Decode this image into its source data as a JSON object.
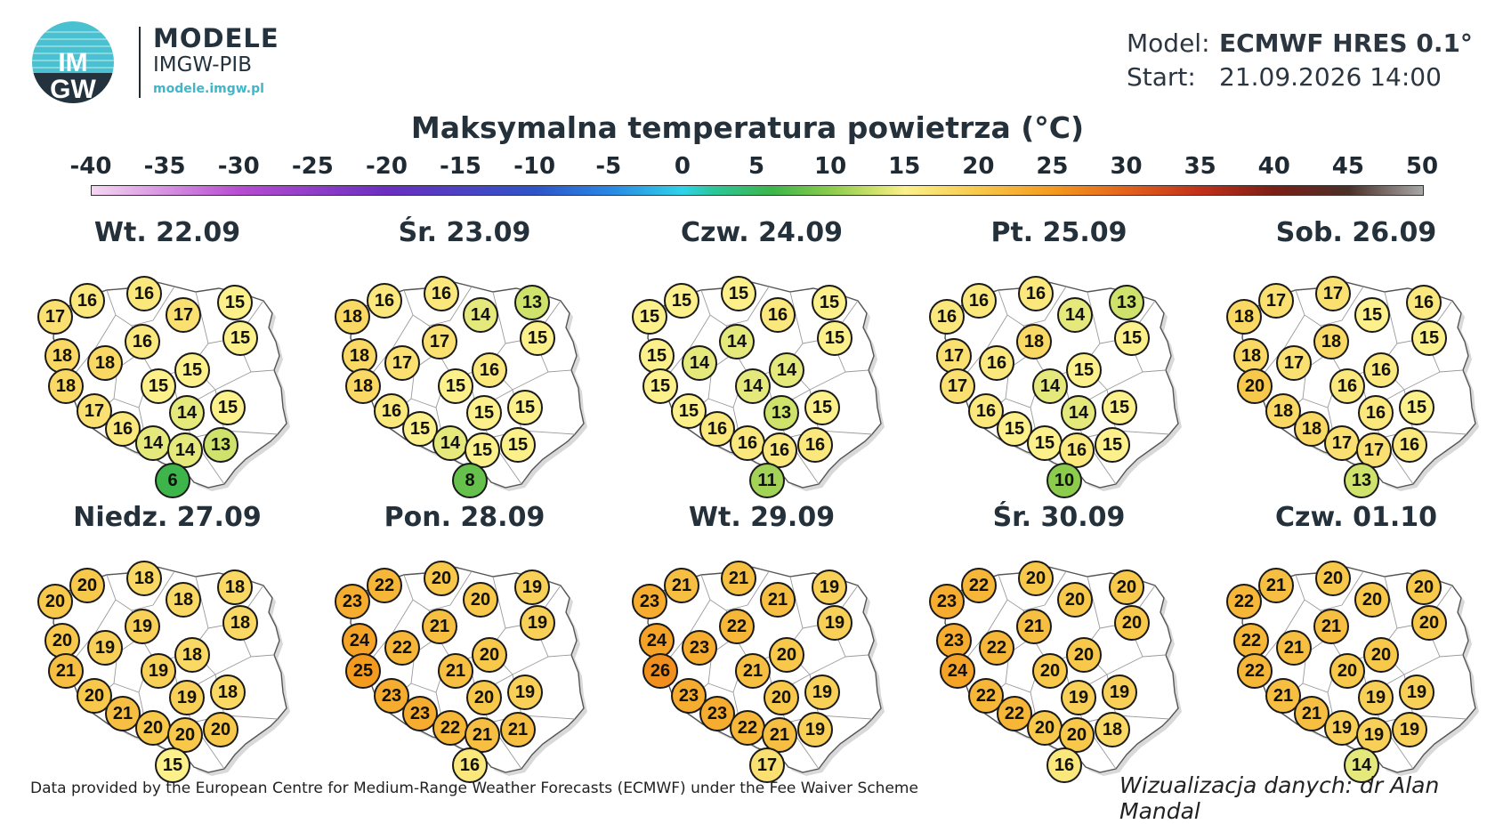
{
  "brand": {
    "logo_text_top": "IM",
    "logo_text_bottom": "GW",
    "line1": "MODELE",
    "line2": "IMGW-PIB",
    "line3": "modele.imgw.pl"
  },
  "meta": {
    "model_label": "Model:",
    "model_value": "ECMWF HRES 0.1°",
    "start_label": "Start:",
    "start_value": "21.09.2026 14:00"
  },
  "title": "Maksymalna temperatura powietrza (°C)",
  "colorbar": {
    "ticks": [
      "-40",
      "-35",
      "-30",
      "-25",
      "-20",
      "-15",
      "-10",
      "-5",
      "0",
      "5",
      "10",
      "15",
      "20",
      "25",
      "30",
      "35",
      "40",
      "45",
      "50"
    ],
    "stops": [
      {
        "value": -40,
        "color": "#f6d7f2"
      },
      {
        "value": -30,
        "color": "#b74cd1"
      },
      {
        "value": -20,
        "color": "#6a2fc0"
      },
      {
        "value": -10,
        "color": "#2e54c8"
      },
      {
        "value": -5,
        "color": "#2a86e3"
      },
      {
        "value": 0,
        "color": "#2fd3e8"
      },
      {
        "value": 2,
        "color": "#2bc79b"
      },
      {
        "value": 6,
        "color": "#3db54a"
      },
      {
        "value": 10,
        "color": "#8ccc4c"
      },
      {
        "value": 13,
        "color": "#cfe26b"
      },
      {
        "value": 15,
        "color": "#fbf08a"
      },
      {
        "value": 20,
        "color": "#f7c84a"
      },
      {
        "value": 25,
        "color": "#f49a1d"
      },
      {
        "value": 30,
        "color": "#e2621c"
      },
      {
        "value": 35,
        "color": "#c0301a"
      },
      {
        "value": 40,
        "color": "#7a1e16"
      },
      {
        "value": 45,
        "color": "#4a3028"
      },
      {
        "value": 50,
        "color": "#a7a7a7"
      }
    ]
  },
  "days": [
    {
      "label": "Wt. 22.09",
      "values": [
        17,
        16,
        16,
        17,
        15,
        15,
        18,
        18,
        16,
        15,
        18,
        15,
        14,
        15,
        17,
        16,
        14,
        14,
        13,
        6
      ]
    },
    {
      "label": "Śr. 23.09",
      "values": [
        18,
        16,
        16,
        14,
        13,
        15,
        18,
        17,
        17,
        16,
        18,
        15,
        15,
        15,
        16,
        15,
        14,
        15,
        15,
        8
      ]
    },
    {
      "label": "Czw. 24.09",
      "values": [
        15,
        15,
        15,
        16,
        15,
        15,
        15,
        14,
        14,
        14,
        15,
        14,
        13,
        15,
        15,
        16,
        16,
        16,
        16,
        11
      ]
    },
    {
      "label": "Pt. 25.09",
      "values": [
        16,
        16,
        16,
        14,
        13,
        15,
        17,
        16,
        18,
        15,
        17,
        14,
        14,
        15,
        16,
        15,
        15,
        16,
        15,
        10
      ]
    },
    {
      "label": "Sob. 26.09",
      "values": [
        18,
        17,
        17,
        15,
        16,
        15,
        18,
        17,
        18,
        16,
        20,
        16,
        16,
        15,
        18,
        18,
        17,
        17,
        16,
        13
      ]
    },
    {
      "label": "Niedz. 27.09",
      "values": [
        20,
        20,
        18,
        18,
        18,
        18,
        20,
        19,
        19,
        18,
        21,
        19,
        19,
        18,
        20,
        21,
        20,
        20,
        20,
        15
      ]
    },
    {
      "label": "Pon. 28.09",
      "values": [
        23,
        22,
        20,
        20,
        19,
        19,
        24,
        22,
        21,
        20,
        25,
        21,
        20,
        19,
        23,
        23,
        22,
        21,
        21,
        16
      ]
    },
    {
      "label": "Wt. 29.09",
      "values": [
        23,
        21,
        21,
        21,
        19,
        19,
        24,
        23,
        22,
        20,
        26,
        21,
        20,
        19,
        23,
        23,
        22,
        21,
        19,
        17
      ]
    },
    {
      "label": "Śr. 30.09",
      "values": [
        23,
        22,
        20,
        20,
        20,
        20,
        23,
        22,
        21,
        20,
        24,
        20,
        19,
        19,
        22,
        22,
        20,
        20,
        18,
        16
      ]
    },
    {
      "label": "Czw. 01.10",
      "values": [
        22,
        21,
        20,
        20,
        20,
        20,
        22,
        21,
        21,
        20,
        22,
        20,
        19,
        19,
        21,
        21,
        19,
        19,
        19,
        14
      ]
    }
  ],
  "footer": {
    "left": "Data provided by the European Centre for Medium-Range Weather Forecasts (ECMWF) under the Fee Waiver Scheme",
    "right": "Wizualizacja danych: dr Alan Mandal"
  }
}
